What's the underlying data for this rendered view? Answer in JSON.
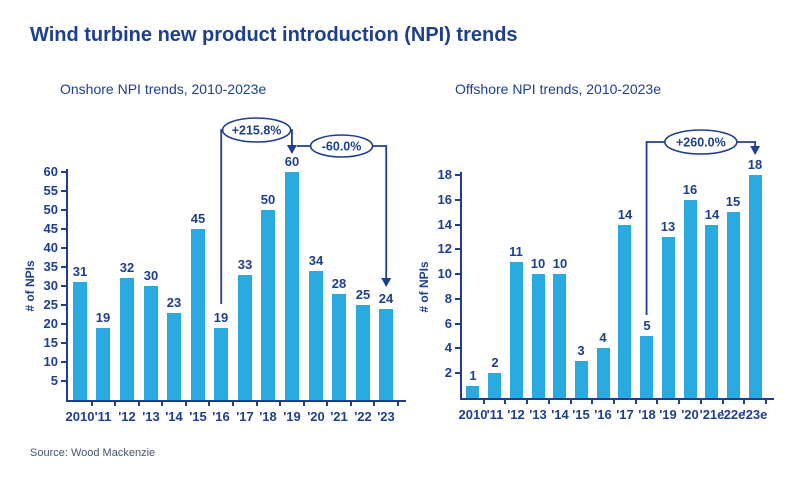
{
  "title": "Wind turbine new product introduction (NPI) trends",
  "source": "Source: Wood Mackenzie",
  "colors": {
    "bar": "#29abe2",
    "navy": "#1e3f8e",
    "source_text": "#44546a",
    "background": "#ffffff"
  },
  "chart_data": [
    {
      "type": "bar",
      "title": "Onshore NPI trends, 2010-2023e",
      "ylabel": "# of NPIs",
      "xlabel": "",
      "ylim": [
        0,
        60
      ],
      "ytick_step": 5,
      "grid": false,
      "legend": false,
      "categories": [
        "2010",
        "'11",
        "'12",
        "'13",
        "'14",
        "'15",
        "'16",
        "'17",
        "'18",
        "'19",
        "'20",
        "'21",
        "'22",
        "'23"
      ],
      "values": [
        31,
        19,
        32,
        30,
        23,
        45,
        19,
        33,
        50,
        60,
        34,
        28,
        25,
        24
      ],
      "annotations": [
        {
          "label": "+215.8%",
          "from": "'16",
          "to": "'19"
        },
        {
          "label": "-60.0%",
          "from": "'19",
          "to": "'23"
        }
      ]
    },
    {
      "type": "bar",
      "title": "Offshore NPI trends, 2010-2023e",
      "ylabel": "# of NPIs",
      "xlabel": "",
      "ylim": [
        0,
        18
      ],
      "ytick_step": 2,
      "grid": false,
      "legend": false,
      "categories": [
        "2010",
        "'11",
        "'12",
        "'13",
        "'14",
        "'15",
        "'16",
        "'17",
        "'18",
        "'19",
        "'20",
        "'21e",
        "'22e",
        "'23e"
      ],
      "values": [
        1,
        2,
        11,
        10,
        10,
        3,
        4,
        14,
        5,
        13,
        16,
        14,
        15,
        18
      ],
      "annotations": [
        {
          "label": "+260.0%",
          "from": "'18",
          "to": "'23e"
        }
      ]
    }
  ]
}
